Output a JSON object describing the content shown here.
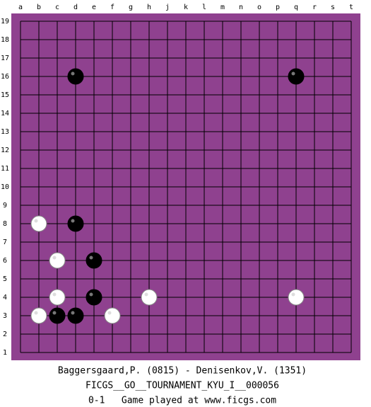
{
  "board": {
    "columns": [
      "a",
      "b",
      "c",
      "d",
      "e",
      "f",
      "g",
      "h",
      "j",
      "k",
      "l",
      "m",
      "n",
      "o",
      "p",
      "q",
      "r",
      "s",
      "t"
    ],
    "rows": [
      19,
      18,
      17,
      16,
      15,
      14,
      13,
      12,
      11,
      10,
      9,
      8,
      7,
      6,
      5,
      4,
      3,
      2,
      1
    ],
    "color": "#8f418f",
    "stones": [
      {
        "color": "black",
        "col": "d",
        "row": 16
      },
      {
        "color": "black",
        "col": "q",
        "row": 16
      },
      {
        "color": "white",
        "col": "b",
        "row": 8
      },
      {
        "color": "black",
        "col": "d",
        "row": 8
      },
      {
        "color": "white",
        "col": "c",
        "row": 6
      },
      {
        "color": "black",
        "col": "e",
        "row": 6
      },
      {
        "color": "white",
        "col": "c",
        "row": 4
      },
      {
        "color": "black",
        "col": "e",
        "row": 4
      },
      {
        "color": "white",
        "col": "h",
        "row": 4
      },
      {
        "color": "white",
        "col": "q",
        "row": 4
      },
      {
        "color": "white",
        "col": "b",
        "row": 3
      },
      {
        "color": "black",
        "col": "c",
        "row": 3
      },
      {
        "color": "black",
        "col": "d",
        "row": 3
      },
      {
        "color": "white",
        "col": "f",
        "row": 3
      }
    ]
  },
  "game_info": [
    "Baggersgaard,P. (0815) - Denisenkov,V. (1351)",
    "FICGS__GO__TOURNAMENT_KYU_I__000056",
    "0-1   Game played at www.ficgs.com"
  ]
}
